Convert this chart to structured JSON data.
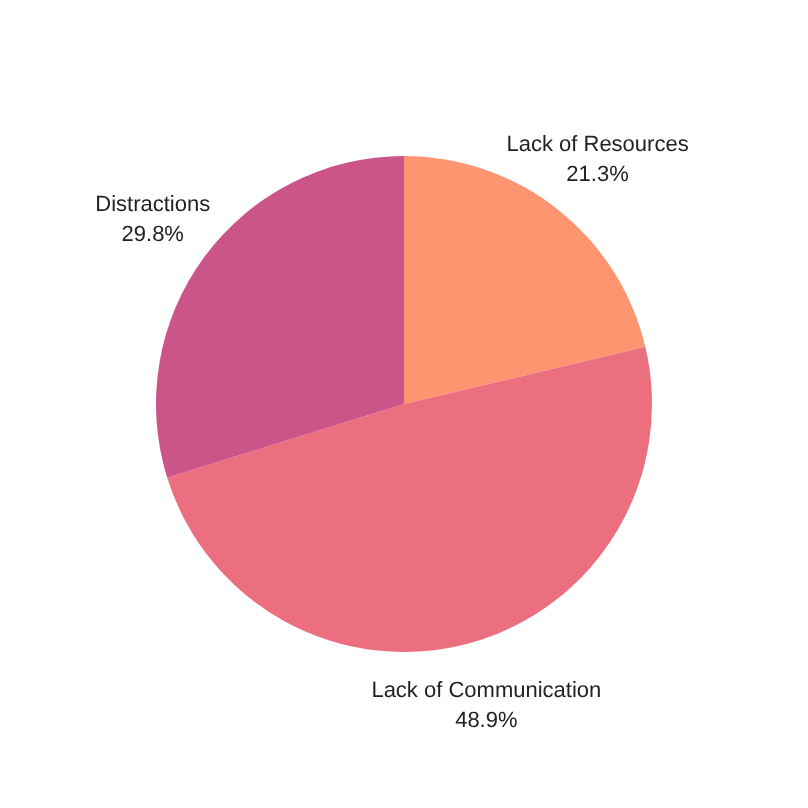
{
  "chart_data": {
    "type": "pie",
    "categories": [
      "Lack of Resources",
      "Lack of Communication",
      "Distractions"
    ],
    "values": [
      21.3,
      48.9,
      29.8
    ],
    "colors": [
      "#fe9470",
      "#ec6f80",
      "#cb5489"
    ],
    "value_labels": [
      "21.3%",
      "48.9%",
      "29.8%"
    ]
  }
}
